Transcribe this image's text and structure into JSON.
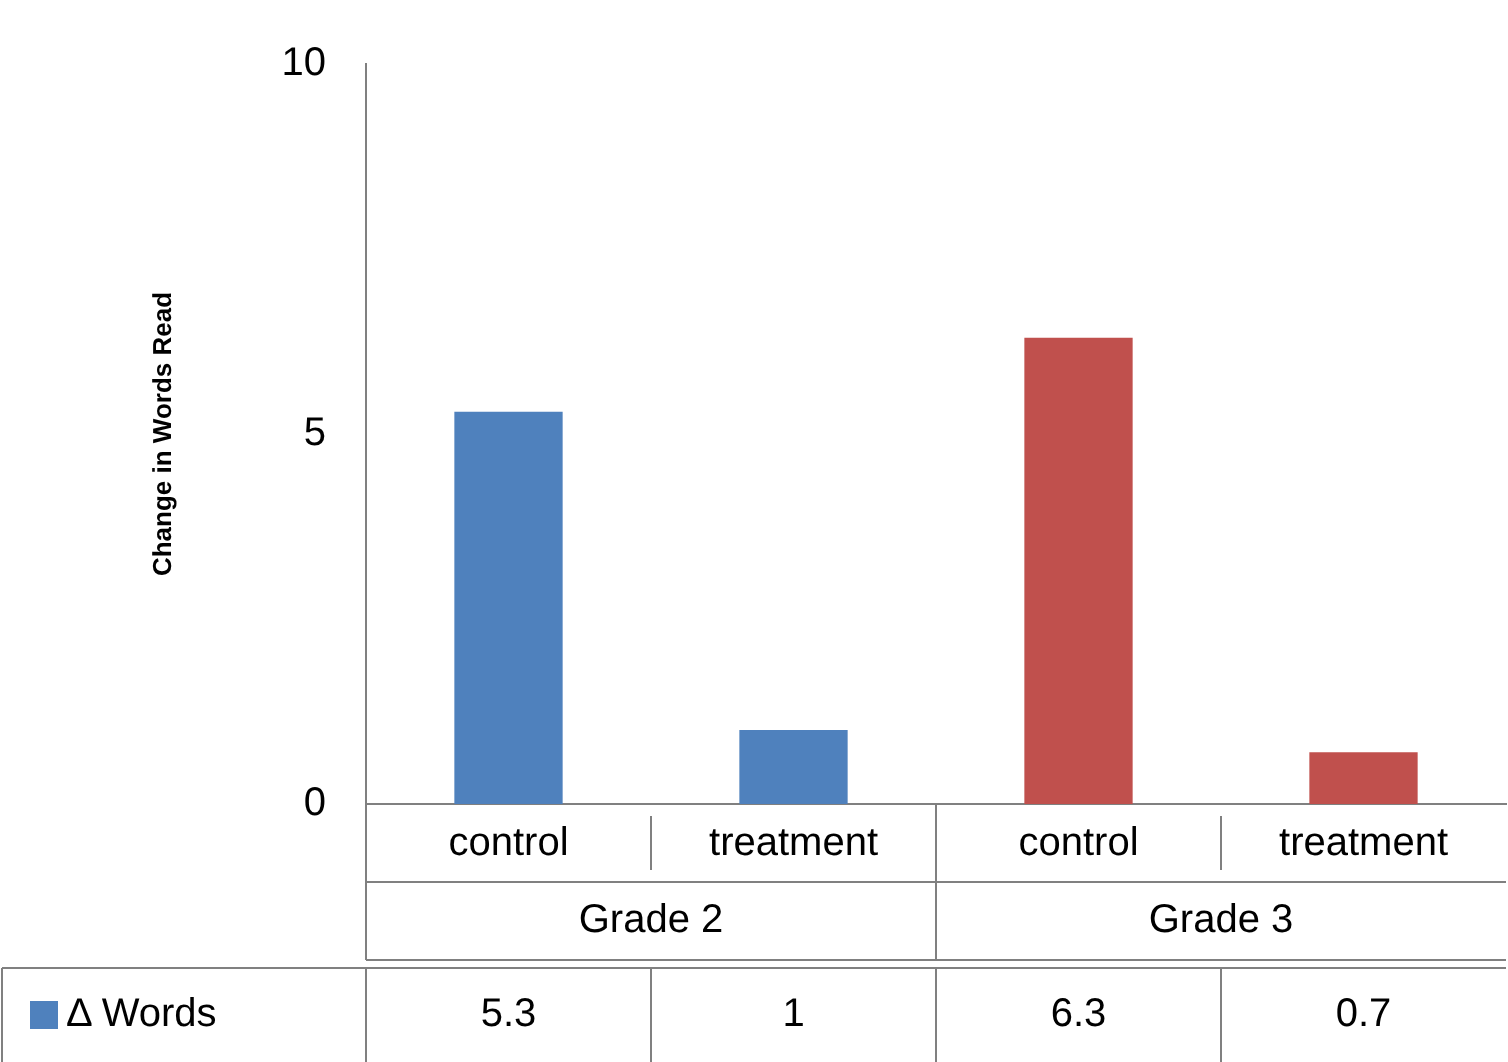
{
  "chart_data": {
    "type": "bar",
    "ylabel": "Change in Words Read",
    "categories": [
      "control",
      "treatment",
      "control",
      "treatment"
    ],
    "series": [
      {
        "name": "Δ Words",
        "color": "#4f81bd",
        "colors": [
          "#4f81bd",
          "#4f81bd",
          "#c0504d",
          "#c0504d"
        ],
        "values": [
          5.3,
          1,
          6.3,
          0.7
        ]
      }
    ],
    "ylim": [
      0,
      10
    ],
    "yticks": [
      0,
      5,
      10
    ],
    "grid": false,
    "legend": "bottom left",
    "data_labels": true,
    "annotations": [
      "Grade 2",
      "Grade 3"
    ]
  }
}
